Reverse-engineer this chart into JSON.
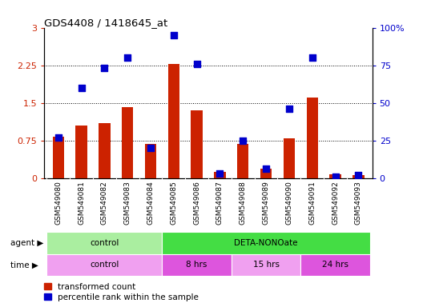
{
  "title": "GDS4408 / 1418645_at",
  "samples": [
    "GSM549080",
    "GSM549081",
    "GSM549082",
    "GSM549083",
    "GSM549084",
    "GSM549085",
    "GSM549086",
    "GSM549087",
    "GSM549088",
    "GSM549089",
    "GSM549090",
    "GSM549091",
    "GSM549092",
    "GSM549093"
  ],
  "transformed_count": [
    0.82,
    1.05,
    1.1,
    1.42,
    0.68,
    2.27,
    1.35,
    0.12,
    0.68,
    0.18,
    0.8,
    1.6,
    0.07,
    0.06
  ],
  "percentile_rank": [
    27,
    60,
    73,
    80,
    20,
    95,
    76,
    3,
    25,
    6,
    46,
    80,
    1,
    2
  ],
  "ylim_left": [
    0,
    3
  ],
  "ylim_right": [
    0,
    100
  ],
  "yticks_left": [
    0,
    0.75,
    1.5,
    2.25,
    3
  ],
  "yticks_right": [
    0,
    25,
    50,
    75,
    100
  ],
  "ytick_labels_left": [
    "0",
    "0.75",
    "1.5",
    "2.25",
    "3"
  ],
  "ytick_labels_right": [
    "0",
    "25",
    "50",
    "75",
    "100%"
  ],
  "bar_color": "#cc2200",
  "dot_color": "#0000cc",
  "agent_row": [
    {
      "label": "control",
      "start": 0,
      "end": 4,
      "color": "#aaeea0"
    },
    {
      "label": "DETA-NONOate",
      "start": 5,
      "end": 13,
      "color": "#44dd44"
    }
  ],
  "time_row": [
    {
      "label": "control",
      "start": 0,
      "end": 4,
      "color": "#f0a0f0"
    },
    {
      "label": "8 hrs",
      "start": 5,
      "end": 7,
      "color": "#dd55dd"
    },
    {
      "label": "15 hrs",
      "start": 8,
      "end": 10,
      "color": "#f0a0f0"
    },
    {
      "label": "24 hrs",
      "start": 11,
      "end": 13,
      "color": "#dd55dd"
    }
  ],
  "legend_items": [
    {
      "label": "transformed count",
      "color": "#cc2200"
    },
    {
      "label": "percentile rank within the sample",
      "color": "#0000cc"
    }
  ],
  "bg_color": "#ffffff",
  "tick_label_color_left": "#cc2200",
  "tick_label_color_right": "#0000cc",
  "bar_width": 0.5,
  "dot_size": 35,
  "xtick_bg_color": "#d8d8d8"
}
